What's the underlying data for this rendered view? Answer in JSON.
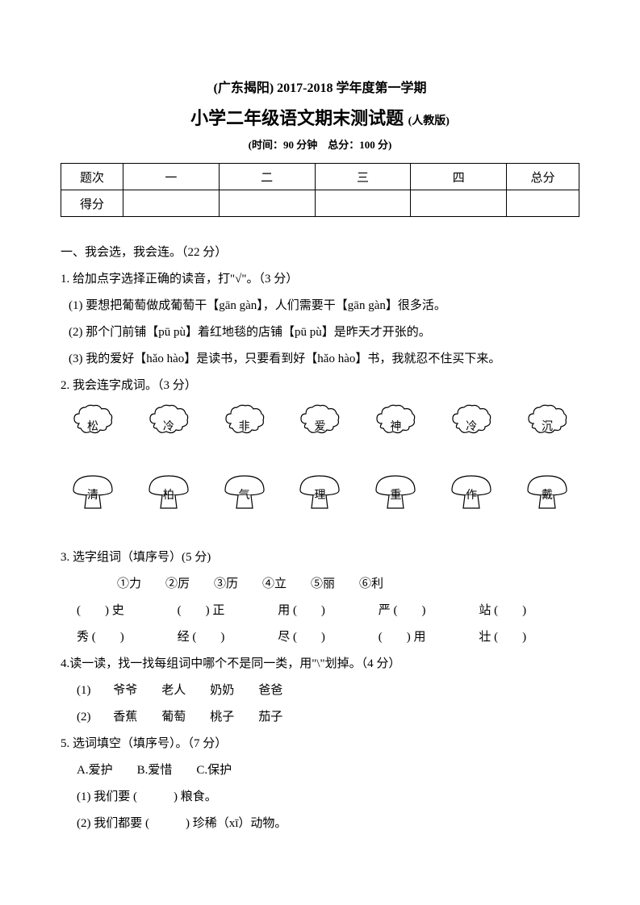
{
  "header": {
    "line1": "(广东揭阳)  2017-2018 学年度第一学期",
    "line2_main": "小学二年级语文期末测试题",
    "line2_small": "(人教版)",
    "line3": "(时间：90 分钟　总分：100 分)"
  },
  "score_table": {
    "row1": [
      "题次",
      "一",
      "二",
      "三",
      "四",
      "总分"
    ],
    "row2_label": "得分"
  },
  "section1": {
    "title": "一、我会选，我会连。（22 分）",
    "q1": {
      "stem": "1. 给加点字选择正确的读音，打\"√\"。（3 分）",
      "i1": "(1) 要想把葡萄做成葡萄干【gān  gàn】，人们需要干【gān  gàn】很多活。",
      "i2": "(2) 那个门前铺【pū  pù】着红地毯的店铺【pū  pù】是昨天才开张的。",
      "i3": "(3) 我的爱好【hǎo  hào】是读书，只要看到好【hǎo  hào】书，我就忍不住买下来。"
    },
    "q2": {
      "stem": "2. 我会连字成词。（3 分）",
      "clouds": [
        "松",
        "冷",
        "非",
        "爱",
        "神",
        "冷",
        "沉"
      ],
      "mush": [
        "清",
        "柏",
        "气",
        "理",
        "重",
        "作",
        "戴"
      ]
    },
    "q3": {
      "stem": "3. 选字组词（填序号）(5 分)",
      "opts": "①力　　②厉　　③历　　④立　　⑤丽　　⑥利",
      "l1": [
        "(　　) 史",
        "(　　) 正",
        "用 (　　)",
        "严 (　　)",
        "站 (　　)"
      ],
      "l2": [
        "秀 (　　)",
        "经 (　　)",
        "尽 (　　)",
        "(　　) 用",
        "壮 (　　)"
      ]
    },
    "q4": {
      "stem": "4.读一读，找一找每组词中哪个不是同一类，用\"\\\"划掉。（4 分）",
      "i1": "(1) 爷爷　　老人　　奶奶　　爸爸",
      "i2": "(2) 香蕉　　葡萄　　桃子　　茄子"
    },
    "q5": {
      "stem": "5. 选词填空（填序号）。（7 分）",
      "opts": "A.爱护　　B.爱惜　　C.保护",
      "i1": "(1) 我们要 (　　　) 粮食。",
      "i2": "(2) 我们都要 (　　　) 珍稀（xī）动物。"
    }
  },
  "style": {
    "cloud_stroke": "#000000",
    "cloud_fill": "#ffffff"
  }
}
